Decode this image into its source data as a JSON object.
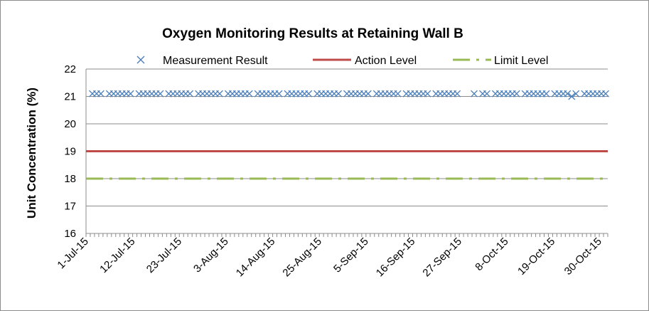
{
  "chart_data": {
    "type": "line",
    "title": "Oxygen Monitoring Results at Retaining Wall B",
    "xlabel": "",
    "ylabel": "Unit Concentratio​n (%)",
    "ylim": [
      16,
      22
    ],
    "yticks": [
      "16",
      "17",
      "18",
      "19",
      "20",
      "21",
      "22"
    ],
    "xlim": [
      "2015-07-01",
      "2015-10-31"
    ],
    "xticks": [
      "1-Jul-15",
      "12-Jul-15",
      "23-Jul-15",
      "3-Aug-15",
      "14-Aug-15",
      "25-Aug-15",
      "5-Sep-15",
      "16-Sep-15",
      "27-Sep-15",
      "8-Oct-15",
      "19-Oct-15",
      "30-Oct-15"
    ],
    "grid": true,
    "legend": "top",
    "series": [
      {
        "name": "Measurement Result",
        "style": "x-markers",
        "color": "#4a7ebb",
        "points": [
          {
            "x": "2015-07-02",
            "y": 21.1
          },
          {
            "x": "2015-07-03",
            "y": 21.1
          },
          {
            "x": "2015-07-04",
            "y": 21.1
          },
          {
            "x": "2015-07-06",
            "y": 21.1
          },
          {
            "x": "2015-07-07",
            "y": 21.1
          },
          {
            "x": "2015-07-08",
            "y": 21.1
          },
          {
            "x": "2015-07-09",
            "y": 21.1
          },
          {
            "x": "2015-07-10",
            "y": 21.1
          },
          {
            "x": "2015-07-11",
            "y": 21.1
          },
          {
            "x": "2015-07-13",
            "y": 21.1
          },
          {
            "x": "2015-07-14",
            "y": 21.1
          },
          {
            "x": "2015-07-15",
            "y": 21.1
          },
          {
            "x": "2015-07-16",
            "y": 21.1
          },
          {
            "x": "2015-07-17",
            "y": 21.1
          },
          {
            "x": "2015-07-18",
            "y": 21.1
          },
          {
            "x": "2015-07-20",
            "y": 21.1
          },
          {
            "x": "2015-07-21",
            "y": 21.1
          },
          {
            "x": "2015-07-22",
            "y": 21.1
          },
          {
            "x": "2015-07-23",
            "y": 21.1
          },
          {
            "x": "2015-07-24",
            "y": 21.1
          },
          {
            "x": "2015-07-25",
            "y": 21.1
          },
          {
            "x": "2015-07-27",
            "y": 21.1
          },
          {
            "x": "2015-07-28",
            "y": 21.1
          },
          {
            "x": "2015-07-29",
            "y": 21.1
          },
          {
            "x": "2015-07-30",
            "y": 21.1
          },
          {
            "x": "2015-07-31",
            "y": 21.1
          },
          {
            "x": "2015-08-01",
            "y": 21.1
          },
          {
            "x": "2015-08-03",
            "y": 21.1
          },
          {
            "x": "2015-08-04",
            "y": 21.1
          },
          {
            "x": "2015-08-05",
            "y": 21.1
          },
          {
            "x": "2015-08-06",
            "y": 21.1
          },
          {
            "x": "2015-08-07",
            "y": 21.1
          },
          {
            "x": "2015-08-08",
            "y": 21.1
          },
          {
            "x": "2015-08-10",
            "y": 21.1
          },
          {
            "x": "2015-08-11",
            "y": 21.1
          },
          {
            "x": "2015-08-12",
            "y": 21.1
          },
          {
            "x": "2015-08-13",
            "y": 21.1
          },
          {
            "x": "2015-08-14",
            "y": 21.1
          },
          {
            "x": "2015-08-15",
            "y": 21.1
          },
          {
            "x": "2015-08-17",
            "y": 21.1
          },
          {
            "x": "2015-08-18",
            "y": 21.1
          },
          {
            "x": "2015-08-19",
            "y": 21.1
          },
          {
            "x": "2015-08-20",
            "y": 21.1
          },
          {
            "x": "2015-08-21",
            "y": 21.1
          },
          {
            "x": "2015-08-22",
            "y": 21.1
          },
          {
            "x": "2015-08-24",
            "y": 21.1
          },
          {
            "x": "2015-08-25",
            "y": 21.1
          },
          {
            "x": "2015-08-26",
            "y": 21.1
          },
          {
            "x": "2015-08-27",
            "y": 21.1
          },
          {
            "x": "2015-08-28",
            "y": 21.1
          },
          {
            "x": "2015-08-29",
            "y": 21.1
          },
          {
            "x": "2015-08-31",
            "y": 21.1
          },
          {
            "x": "2015-09-01",
            "y": 21.1
          },
          {
            "x": "2015-09-02",
            "y": 21.1
          },
          {
            "x": "2015-09-03",
            "y": 21.1
          },
          {
            "x": "2015-09-04",
            "y": 21.1
          },
          {
            "x": "2015-09-05",
            "y": 21.1
          },
          {
            "x": "2015-09-07",
            "y": 21.1
          },
          {
            "x": "2015-09-08",
            "y": 21.1
          },
          {
            "x": "2015-09-09",
            "y": 21.1
          },
          {
            "x": "2015-09-10",
            "y": 21.1
          },
          {
            "x": "2015-09-11",
            "y": 21.1
          },
          {
            "x": "2015-09-12",
            "y": 21.1
          },
          {
            "x": "2015-09-14",
            "y": 21.1
          },
          {
            "x": "2015-09-15",
            "y": 21.1
          },
          {
            "x": "2015-09-16",
            "y": 21.1
          },
          {
            "x": "2015-09-17",
            "y": 21.1
          },
          {
            "x": "2015-09-18",
            "y": 21.1
          },
          {
            "x": "2015-09-19",
            "y": 21.1
          },
          {
            "x": "2015-09-21",
            "y": 21.1
          },
          {
            "x": "2015-09-22",
            "y": 21.1
          },
          {
            "x": "2015-09-23",
            "y": 21.1
          },
          {
            "x": "2015-09-24",
            "y": 21.1
          },
          {
            "x": "2015-09-25",
            "y": 21.1
          },
          {
            "x": "2015-09-26",
            "y": 21.1
          },
          {
            "x": "2015-09-30",
            "y": 21.1
          },
          {
            "x": "2015-10-02",
            "y": 21.1
          },
          {
            "x": "2015-10-03",
            "y": 21.1
          },
          {
            "x": "2015-10-05",
            "y": 21.1
          },
          {
            "x": "2015-10-06",
            "y": 21.1
          },
          {
            "x": "2015-10-07",
            "y": 21.1
          },
          {
            "x": "2015-10-08",
            "y": 21.1
          },
          {
            "x": "2015-10-09",
            "y": 21.1
          },
          {
            "x": "2015-10-10",
            "y": 21.1
          },
          {
            "x": "2015-10-12",
            "y": 21.1
          },
          {
            "x": "2015-10-13",
            "y": 21.1
          },
          {
            "x": "2015-10-14",
            "y": 21.1
          },
          {
            "x": "2015-10-15",
            "y": 21.1
          },
          {
            "x": "2015-10-16",
            "y": 21.1
          },
          {
            "x": "2015-10-17",
            "y": 21.1
          },
          {
            "x": "2015-10-19",
            "y": 21.1
          },
          {
            "x": "2015-10-20",
            "y": 21.1
          },
          {
            "x": "2015-10-21",
            "y": 21.1
          },
          {
            "x": "2015-10-22",
            "y": 21.1
          },
          {
            "x": "2015-10-23",
            "y": 21.0
          },
          {
            "x": "2015-10-24",
            "y": 21.1
          },
          {
            "x": "2015-10-26",
            "y": 21.1
          },
          {
            "x": "2015-10-27",
            "y": 21.1
          },
          {
            "x": "2015-10-28",
            "y": 21.1
          },
          {
            "x": "2015-10-29",
            "y": 21.1
          },
          {
            "x": "2015-10-30",
            "y": 21.1
          },
          {
            "x": "2015-10-31",
            "y": 21.1
          }
        ]
      },
      {
        "name": "Action Level",
        "style": "solid-line",
        "color": "#be4b48",
        "points": [
          {
            "x": "2015-07-01",
            "y": 19
          },
          {
            "x": "2015-10-31",
            "y": 19
          }
        ]
      },
      {
        "name": "Limit Level",
        "style": "dash-dot-line",
        "color": "#98b954",
        "points": [
          {
            "x": "2015-07-01",
            "y": 18
          },
          {
            "x": "2015-10-31",
            "y": 18
          }
        ]
      }
    ]
  }
}
